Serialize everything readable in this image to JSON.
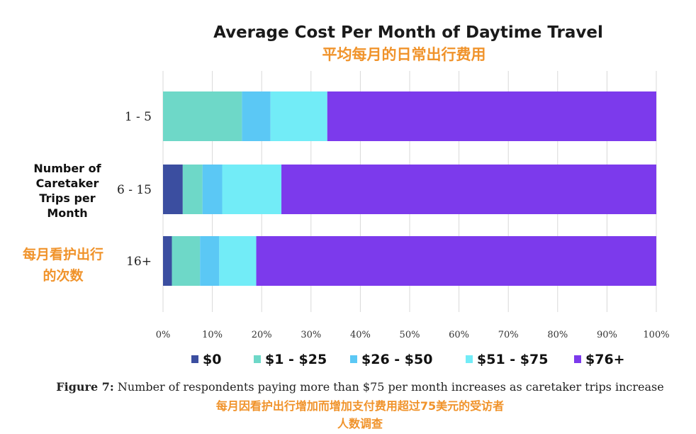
{
  "chart_data": {
    "type": "bar",
    "orientation": "horizontal",
    "stacked": true,
    "title": "Average Cost Per Month of Daytime Travel",
    "title_cn": "平均每月的日常出行费用",
    "ylabel_lines": [
      "Number of",
      "Caretaker",
      "Trips per",
      "Month"
    ],
    "ylabel_cn_lines": [
      "每月看护出行",
      "的次数"
    ],
    "categories": [
      "1 - 5",
      "6 - 15",
      "16+"
    ],
    "xlim": [
      0,
      100
    ],
    "x_ticks": [
      "0%",
      "10%",
      "20%",
      "30%",
      "40%",
      "50%",
      "60%",
      "70%",
      "80%",
      "90%",
      "100%"
    ],
    "grid": true,
    "legend_position": "bottom",
    "series": [
      {
        "name": "$0",
        "color": "#3b4ea0",
        "values": [
          0,
          4,
          1.8
        ]
      },
      {
        "name": "$1 - $25",
        "color": "#6ed8c8",
        "values": [
          16,
          4,
          5.7
        ]
      },
      {
        "name": "$26 - $50",
        "color": "#5bc8f5",
        "values": [
          5.8,
          4,
          3.9
        ]
      },
      {
        "name": "$51 - $75",
        "color": "#72ecf7",
        "values": [
          11.5,
          12,
          7.5
        ]
      },
      {
        "name": "$76+",
        "color": "#7c3aec",
        "values": [
          66.7,
          76,
          81.1
        ]
      }
    ]
  },
  "caption": {
    "bold": "Figure 7:",
    "text": " Number of respondents paying more than $75 per month increases as caretaker trips increase",
    "cn_line1": "每月因看护出行增加而增加支付费用超过75美元的受访者",
    "cn_line2": "人数调查"
  }
}
